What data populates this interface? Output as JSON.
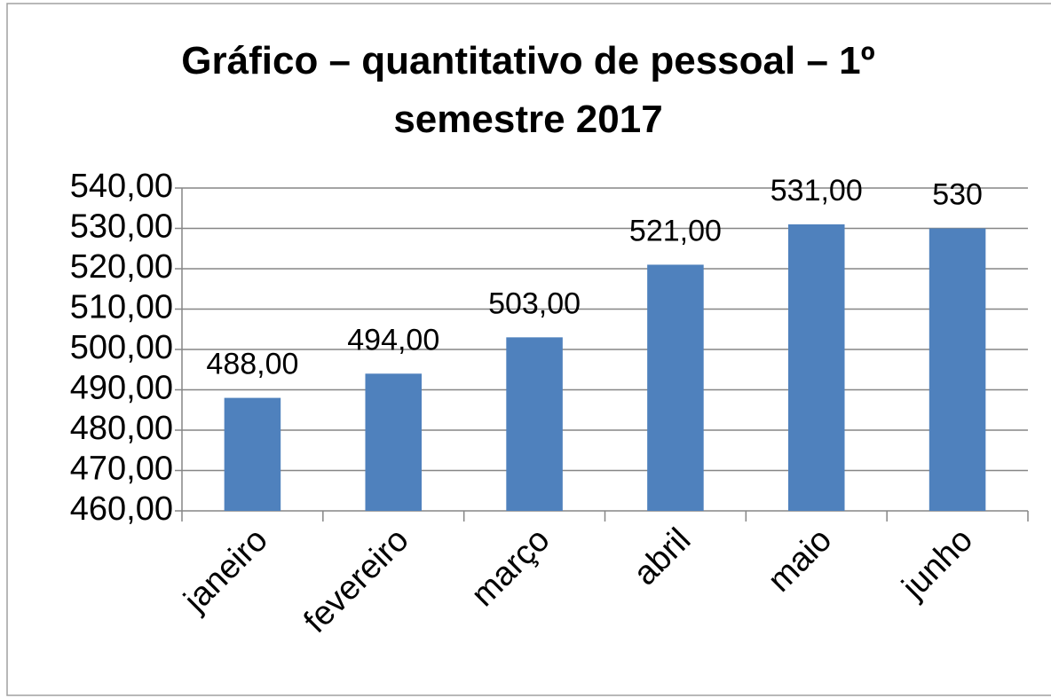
{
  "chart_data": {
    "type": "bar",
    "title": "Gráfico – quantitativo de pessoal – 1º semestre 2017",
    "categories": [
      "janeiro",
      "fevereiro",
      "março",
      "abril",
      "maio",
      "junho"
    ],
    "values": [
      488,
      494,
      503,
      521,
      531,
      530
    ],
    "value_labels": [
      "488,00",
      "494,00",
      "503,00",
      "521,00",
      "531,00",
      "530"
    ],
    "color": "#4f81bd",
    "ylim": [
      460,
      540
    ],
    "yticks": [
      {
        "value": 460,
        "label": "460,00"
      },
      {
        "value": 470,
        "label": "470,00"
      },
      {
        "value": 480,
        "label": "480,00"
      },
      {
        "value": 490,
        "label": "490,00"
      },
      {
        "value": 500,
        "label": "500,00"
      },
      {
        "value": 510,
        "label": "510,00"
      },
      {
        "value": 520,
        "label": "520,00"
      },
      {
        "value": 530,
        "label": "530,00"
      },
      {
        "value": 540,
        "label": "540,00"
      }
    ],
    "grid": true
  }
}
